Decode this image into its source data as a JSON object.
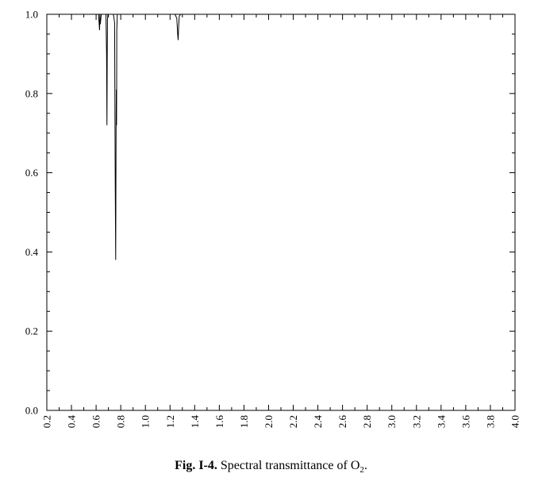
{
  "caption": {
    "fig_label": "Fig. I-4.",
    "text_before_sub": "Spectral transmittance of O",
    "subscript": "2",
    "text_after_sub": "."
  },
  "chart_data": {
    "type": "line",
    "title": "",
    "xlabel": "",
    "ylabel": "",
    "xlim": [
      0.2,
      4.0
    ],
    "ylim": [
      0.0,
      1.0
    ],
    "x_tick_labels": [
      "0.2",
      "0.4",
      "0.6",
      "0.8",
      "1.0",
      "1.2",
      "1.4",
      "1.6",
      "1.8",
      "2.0",
      "2.2",
      "2.4",
      "2.6",
      "2.8",
      "3.0",
      "3.2",
      "3.4",
      "3.6",
      "3.8",
      "4.0"
    ],
    "y_tick_labels": [
      "0.0",
      "0.2",
      "0.4",
      "0.6",
      "0.8",
      "1.0"
    ],
    "grid": false,
    "series": [
      {
        "color": "#000000",
        "x": [
          0.3,
          0.62,
          0.628,
          0.631,
          0.634,
          0.642,
          0.68,
          0.685,
          0.688,
          0.69,
          0.692,
          0.696,
          0.7,
          0.74,
          0.75,
          0.755,
          0.759,
          0.762,
          0.764,
          0.766,
          0.768,
          0.772,
          0.78,
          1.24,
          1.255,
          1.262,
          1.266,
          1.27,
          1.275,
          1.285,
          4.0
        ],
        "y": [
          1.0,
          1.0,
          0.96,
          1.0,
          0.975,
          1.0,
          1.0,
          0.9,
          0.72,
          0.88,
          0.985,
          1.0,
          1.0,
          1.0,
          0.98,
          0.59,
          0.38,
          0.7,
          0.81,
          0.72,
          0.96,
          1.0,
          1.0,
          1.0,
          0.99,
          0.95,
          0.935,
          0.97,
          0.995,
          1.0,
          1.0
        ]
      }
    ]
  }
}
